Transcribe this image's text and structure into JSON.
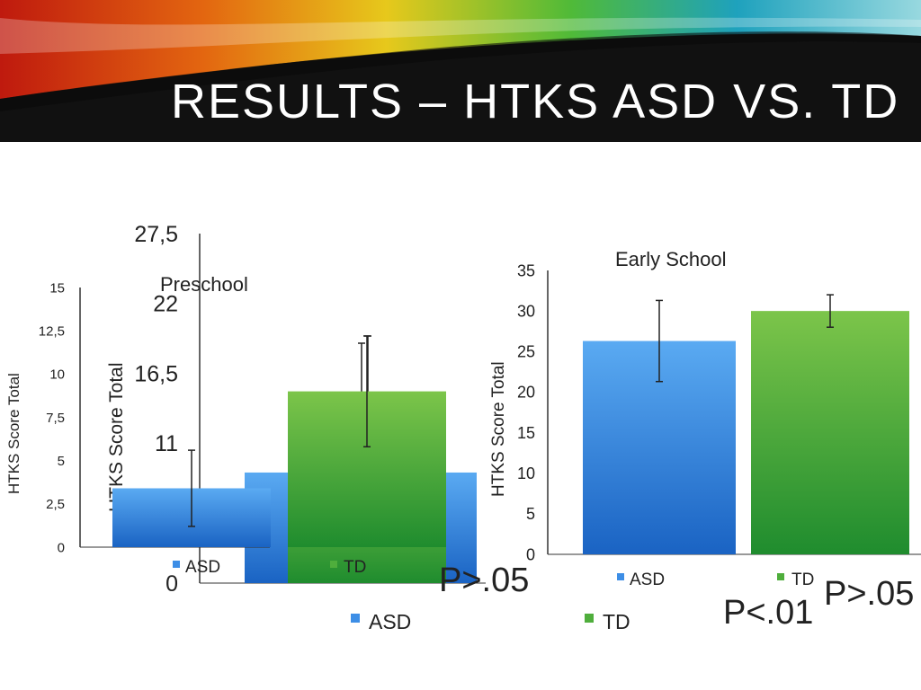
{
  "slide": {
    "title": "RESULTS – HTKS ASD VS. TD"
  },
  "colors": {
    "asd": "#3d8ee6",
    "td": "#4fae3c",
    "header_bg": "#111111",
    "text": "#222222"
  },
  "chart_data": [
    {
      "type": "bar",
      "title": "",
      "categories": [
        "ASD",
        "TD"
      ],
      "values": [
        8.7,
        9.0
      ],
      "ylabel": "HTKS Score Total",
      "ylim": [
        0,
        27.5
      ],
      "yticks": [
        "0",
        "11",
        "16,5",
        "22",
        "27,5"
      ],
      "legend": [
        "ASD",
        "TD"
      ],
      "annotation": "P>.05"
    },
    {
      "type": "bar",
      "title": "Preschool",
      "categories": [
        "ASD",
        "TD"
      ],
      "values": [
        3.4,
        9.0
      ],
      "error": [
        2.2,
        3.2
      ],
      "ylabel": "HTKS Score Total",
      "ylim": [
        0,
        15
      ],
      "yticks": [
        "0",
        "2,5",
        "5",
        "7,5",
        "10",
        "12,5",
        "15"
      ],
      "legend": [
        "ASD",
        "TD"
      ]
    },
    {
      "type": "bar",
      "title": "Early School",
      "categories": [
        "ASD",
        "TD"
      ],
      "values": [
        26.3,
        30.0
      ],
      "error": [
        5.0,
        2.0
      ],
      "ylabel": "HTKS Score Total",
      "ylim": [
        0,
        35
      ],
      "yticks": [
        "0",
        "5",
        "10",
        "15",
        "20",
        "25",
        "30",
        "35"
      ],
      "legend": [
        "ASD",
        "TD"
      ],
      "annotation": "P<.01",
      "extra_annotation": "P>.05"
    }
  ]
}
